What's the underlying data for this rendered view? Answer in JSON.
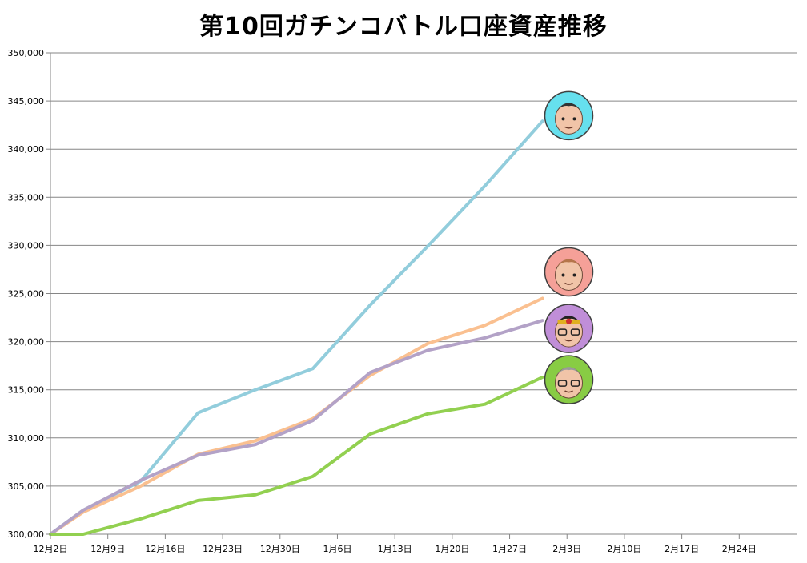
{
  "chart_data": {
    "type": "line",
    "title": "第10回ガチンコバトル口座資産推移",
    "xlabel": "",
    "ylabel": "",
    "x_tick_labels": [
      "12月2日",
      "12月9日",
      "12月16日",
      "12月23日",
      "12月30日",
      "1月6日",
      "1月13日",
      "1月20日",
      "1月27日",
      "2月3日",
      "2月10日",
      "2月17日",
      "2月24日"
    ],
    "x_tick_dates": [
      "12-02",
      "12-09",
      "12-16",
      "12-23",
      "12-30",
      "01-06",
      "01-13",
      "01-20",
      "01-27",
      "02-03",
      "02-10",
      "02-17",
      "02-24"
    ],
    "y_tick_labels": [
      "300,000",
      "305,000",
      "310,000",
      "315,000",
      "320,000",
      "325,000",
      "330,000",
      "335,000",
      "340,000",
      "345,000",
      "350,000"
    ],
    "ylim": [
      300000,
      350000
    ],
    "xlim": [
      "12-02",
      "03-03"
    ],
    "grid": true,
    "series": [
      {
        "color": "#92cddc",
        "avatar_bg": "#66e0ee",
        "points": [
          [
            "12-02",
            300000
          ],
          [
            "12-06",
            302500
          ],
          [
            "12-13",
            305500
          ],
          [
            "12-20",
            312600
          ],
          [
            "12-27",
            315000
          ],
          [
            "01-03",
            317200
          ],
          [
            "01-10",
            323800
          ],
          [
            "01-17",
            329900
          ],
          [
            "01-24",
            336200
          ],
          [
            "01-31",
            342900
          ]
        ]
      },
      {
        "color": "#fac090",
        "avatar_bg": "#f5a098",
        "points": [
          [
            "12-02",
            300000
          ],
          [
            "12-06",
            302300
          ],
          [
            "12-13",
            305000
          ],
          [
            "12-20",
            308300
          ],
          [
            "12-27",
            309700
          ],
          [
            "01-03",
            312000
          ],
          [
            "01-10",
            316500
          ],
          [
            "01-17",
            319800
          ],
          [
            "01-24",
            321700
          ],
          [
            "01-31",
            324500
          ]
        ]
      },
      {
        "color": "#b3a2c7",
        "avatar_bg": "#c08ed8",
        "points": [
          [
            "12-02",
            300000
          ],
          [
            "12-06",
            302500
          ],
          [
            "12-13",
            305600
          ],
          [
            "12-20",
            308200
          ],
          [
            "12-27",
            309300
          ],
          [
            "01-03",
            311800
          ],
          [
            "01-10",
            316800
          ],
          [
            "01-17",
            319100
          ],
          [
            "01-24",
            320400
          ],
          [
            "01-31",
            322200
          ]
        ]
      },
      {
        "color": "#92d050",
        "avatar_bg": "#88cc44",
        "points": [
          [
            "12-02",
            300000
          ],
          [
            "12-06",
            300000
          ],
          [
            "12-13",
            301600
          ],
          [
            "12-20",
            303500
          ],
          [
            "12-27",
            304100
          ],
          [
            "01-03",
            306000
          ],
          [
            "01-10",
            310400
          ],
          [
            "01-17",
            312500
          ],
          [
            "01-24",
            313500
          ],
          [
            "01-31",
            316300
          ]
        ]
      }
    ]
  },
  "avatars": [
    {
      "name": "avatar-topknot-man",
      "icon": "face-topknot-icon"
    },
    {
      "name": "avatar-brown-hair",
      "icon": "face-brown-hair-icon"
    },
    {
      "name": "avatar-glasses-headband",
      "icon": "face-glasses-icon"
    },
    {
      "name": "avatar-grey-hair",
      "icon": "face-grey-hair-icon"
    }
  ]
}
